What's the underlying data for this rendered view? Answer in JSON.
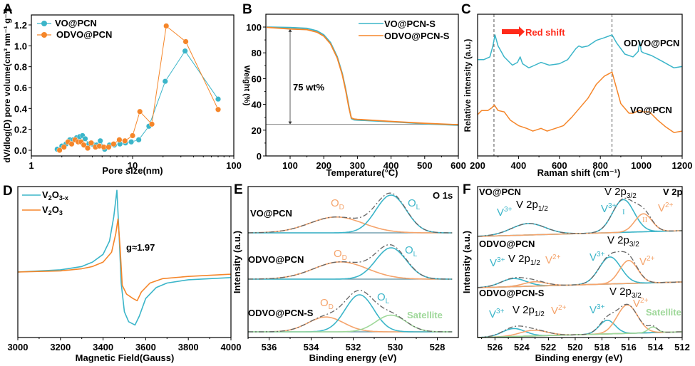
{
  "colors": {
    "teal": "#3bb5c9",
    "orange": "#f5862a",
    "light_orange": "#f5a46c",
    "green": "#9fd89a",
    "gray": "#666666",
    "red": "#ff2a1a"
  },
  "chart_data": [
    {
      "panel": "A",
      "type": "scatter",
      "xscale": "log",
      "xlabel": "Pore size(nm)",
      "ylabel": "dV/dlog(D) pore volume(cm³ nm⁻¹ g⁻¹)",
      "xlim": [
        1,
        100
      ],
      "ylim": [
        -0.05,
        1.25
      ],
      "xticks": [
        "1",
        "10",
        "100"
      ],
      "yticks": [
        "0.0",
        "0.2",
        "0.4",
        "0.6",
        "0.8",
        "1.0",
        "1.2"
      ],
      "legend": "top-left",
      "series": [
        {
          "name": "VO@PCN",
          "color": "teal",
          "x": [
            1.8,
            2.0,
            2.2,
            2.4,
            2.6,
            2.8,
            3.0,
            3.2,
            3.4,
            3.7,
            4.0,
            4.4,
            4.8,
            5.3,
            5.9,
            6.6,
            7.5,
            8.5,
            9.7,
            11.5,
            14.5,
            21,
            33,
            70
          ],
          "y": [
            0.01,
            0.04,
            0.06,
            0.1,
            0.1,
            0.12,
            0.13,
            0.14,
            0.11,
            0.06,
            0.06,
            0.05,
            0.09,
            0.01,
            0.05,
            0.05,
            0.06,
            0.07,
            0.08,
            0.1,
            0.23,
            0.66,
            0.95,
            0.49
          ]
        },
        {
          "name": "ODVO@PCN",
          "color": "orange",
          "x": [
            1.9,
            2.1,
            2.3,
            2.5,
            2.7,
            2.9,
            3.1,
            3.3,
            3.6,
            3.9,
            4.3,
            4.7,
            5.2,
            5.8,
            6.5,
            7.4,
            8.4,
            10.0,
            11.8,
            15.5,
            21.5,
            33.5,
            70
          ],
          "y": [
            0.0,
            0.03,
            0.08,
            0.06,
            0.1,
            0.08,
            0.08,
            0.05,
            0.02,
            0.07,
            0.03,
            0.04,
            0.03,
            0.03,
            0.06,
            0.1,
            0.09,
            0.14,
            0.37,
            0.25,
            1.19,
            1.04,
            0.39
          ]
        }
      ]
    },
    {
      "panel": "B",
      "type": "line",
      "xlabel": "Temperature(°C)",
      "ylabel": "Weight (%)",
      "xlim": [
        30,
        600
      ],
      "ylim": [
        0,
        110
      ],
      "xticks": [
        "100",
        "200",
        "300",
        "400",
        "500",
        "600"
      ],
      "yticks": [
        "0",
        "20",
        "40",
        "60",
        "80",
        "100"
      ],
      "legend": "top-right",
      "annotation": "75 wt%",
      "series": [
        {
          "name": "VO@PCN-S",
          "color": "teal",
          "x": [
            30,
            100,
            150,
            180,
            200,
            220,
            240,
            255,
            265,
            275,
            282,
            290,
            300,
            400,
            500,
            600
          ],
          "y": [
            100,
            99.6,
            99,
            97,
            94,
            88,
            77,
            64,
            52,
            38,
            29,
            28,
            27.8,
            26.5,
            25,
            23.8
          ]
        },
        {
          "name": "ODVO@PCN-S",
          "color": "orange",
          "x": [
            30,
            100,
            150,
            180,
            200,
            220,
            240,
            255,
            265,
            275,
            282,
            290,
            300,
            400,
            500,
            600
          ],
          "y": [
            99.8,
            98.5,
            98,
            96,
            93,
            87,
            76,
            63,
            51,
            37,
            29.5,
            28.6,
            28.4,
            26.8,
            25.3,
            24.2
          ]
        }
      ]
    },
    {
      "panel": "C",
      "type": "line",
      "xlabel": "Raman shift (cm⁻¹)",
      "ylabel": "Relative intensity (a.u.)",
      "xlim": [
        200,
        1200
      ],
      "ylim": [
        0,
        1
      ],
      "xticks": [
        "200",
        "400",
        "600",
        "800",
        "1000",
        "1200"
      ],
      "reference_lines_x": [
        280,
        857
      ],
      "annotation": "Red shift",
      "series": [
        {
          "name": "ODVO@PCN",
          "color": "teal",
          "x": [
            200,
            230,
            260,
            275,
            285,
            300,
            330,
            370,
            395,
            408,
            420,
            450,
            480,
            510,
            550,
            600,
            640,
            680,
            695,
            710,
            740,
            780,
            820,
            857,
            880,
            920,
            960,
            985,
            993,
            1000,
            1010,
            1050,
            1100,
            1160,
            1200
          ],
          "y": [
            0.68,
            0.68,
            0.7,
            0.78,
            0.86,
            0.78,
            0.7,
            0.64,
            0.66,
            0.7,
            0.65,
            0.62,
            0.64,
            0.66,
            0.64,
            0.65,
            0.68,
            0.76,
            0.78,
            0.77,
            0.78,
            0.82,
            0.84,
            0.86,
            0.8,
            0.72,
            0.7,
            0.74,
            0.81,
            0.74,
            0.73,
            0.71,
            0.67,
            0.62,
            0.63
          ]
        },
        {
          "name": "VO@PCN",
          "color": "orange",
          "x": [
            200,
            220,
            250,
            270,
            282,
            300,
            330,
            360,
            400,
            440,
            470,
            510,
            540,
            580,
            620,
            660,
            700,
            740,
            780,
            820,
            845,
            857,
            870,
            900,
            940,
            960,
            990,
            1010,
            1040,
            1080,
            1120,
            1160,
            1200
          ],
          "y": [
            0.28,
            0.31,
            0.31,
            0.33,
            0.35,
            0.31,
            0.3,
            0.24,
            0.2,
            0.18,
            0.16,
            0.18,
            0.16,
            0.18,
            0.2,
            0.26,
            0.33,
            0.4,
            0.5,
            0.56,
            0.58,
            0.59,
            0.52,
            0.36,
            0.29,
            0.29,
            0.31,
            0.3,
            0.3,
            0.24,
            0.19,
            0.15,
            0.16
          ]
        }
      ]
    },
    {
      "panel": "D",
      "type": "line",
      "xlabel": "Magnetic Field(Gauss)",
      "ylabel": "",
      "xlim": [
        3000,
        4000
      ],
      "ylim": [
        -1,
        1
      ],
      "xticks": [
        "3000",
        "3200",
        "3400",
        "3600",
        "3800",
        "4000"
      ],
      "annotation": "g≈1.97",
      "legend": "top-left",
      "series": [
        {
          "name": "V2O3-x",
          "color": "teal",
          "x": [
            3000,
            3200,
            3300,
            3350,
            3400,
            3430,
            3450,
            3465,
            3475,
            3485,
            3500,
            3520,
            3550,
            3570,
            3600,
            3650,
            3700,
            3800,
            4000
          ],
          "y": [
            0.0,
            0.02,
            0.05,
            0.09,
            0.16,
            0.28,
            0.5,
            0.74,
            0.35,
            -0.1,
            -0.36,
            -0.45,
            -0.48,
            -0.4,
            -0.24,
            -0.14,
            -0.1,
            -0.07,
            -0.05
          ]
        },
        {
          "name": "V2O3",
          "color": "orange",
          "x": [
            3000,
            3200,
            3300,
            3350,
            3400,
            3440,
            3460,
            3470,
            3480,
            3490,
            3510,
            3540,
            3560,
            3580,
            3620,
            3680,
            3800,
            4000
          ],
          "y": [
            0.0,
            0.01,
            0.03,
            0.05,
            0.09,
            0.18,
            0.35,
            0.48,
            0.22,
            -0.12,
            -0.2,
            -0.24,
            -0.26,
            -0.18,
            -0.1,
            -0.06,
            -0.04,
            -0.02
          ]
        }
      ]
    },
    {
      "panel": "E",
      "type": "line",
      "title_tag": "O 1s",
      "xlabel": "Binding energy (eV)",
      "ylabel": "Intensity (a.u.)",
      "xlim": [
        537,
        527
      ],
      "xticks": [
        "536",
        "534",
        "532",
        "530",
        "528"
      ],
      "spectra": [
        {
          "sample": "VO@PCN",
          "peaks": [
            {
              "label": "OD",
              "color": "light_orange",
              "center": 532.8,
              "fwhm": 3.0,
              "height": 0.42
            },
            {
              "label": "OL",
              "color": "teal",
              "center": 530.2,
              "fwhm": 1.7,
              "height": 1.0
            }
          ]
        },
        {
          "sample": "ODVO@PCN",
          "peaks": [
            {
              "label": "OD",
              "color": "light_orange",
              "center": 532.6,
              "fwhm": 3.0,
              "height": 0.55
            },
            {
              "label": "OL",
              "color": "teal",
              "center": 530.2,
              "fwhm": 1.7,
              "height": 1.0
            }
          ]
        },
        {
          "sample": "ODVO@PCN-S",
          "peaks": [
            {
              "label": "OD",
              "color": "light_orange",
              "center": 533.3,
              "fwhm": 2.0,
              "height": 0.4
            },
            {
              "label": "OL",
              "color": "teal",
              "center": 531.7,
              "fwhm": 1.6,
              "height": 1.0
            },
            {
              "label": "Satellite",
              "color": "green",
              "center": 530.2,
              "fwhm": 1.7,
              "height": 0.45
            }
          ]
        }
      ]
    },
    {
      "panel": "F",
      "type": "line",
      "title_tag": "V 2p",
      "xlabel": "Binding energy (eV)",
      "ylabel": "Intensity (a.u.)",
      "xlim": [
        527.3,
        512
      ],
      "xticks": [
        "526",
        "524",
        "522",
        "520",
        "518",
        "516",
        "514",
        "512"
      ],
      "spectra": [
        {
          "sample": "VO@PCN",
          "peaks": [
            {
              "label": "V3+",
              "color": "teal",
              "center": 523.5,
              "fwhm": 3.0,
              "height": 0.35
            },
            {
              "label": "V3+",
              "color": "teal",
              "center": 516.4,
              "fwhm": 1.9,
              "height": 1.0
            },
            {
              "label": "V2+",
              "color": "light_orange",
              "center": 514.9,
              "fwhm": 1.5,
              "height": 0.55
            }
          ]
        },
        {
          "sample": "ODVO@PCN",
          "peaks": [
            {
              "label": "V3+",
              "color": "teal",
              "center": 524.6,
              "fwhm": 2.2,
              "height": 0.3
            },
            {
              "label": "V2+",
              "color": "light_orange",
              "center": 523.0,
              "fwhm": 2.0,
              "height": 0.16
            },
            {
              "label": "V3+",
              "color": "teal",
              "center": 517.4,
              "fwhm": 1.9,
              "height": 1.0
            },
            {
              "label": "V2+",
              "color": "light_orange",
              "center": 516.0,
              "fwhm": 1.6,
              "height": 0.85
            }
          ]
        },
        {
          "sample": "ODVO@PCN-S",
          "peaks": [
            {
              "label": "V3+",
              "color": "teal",
              "center": 524.6,
              "fwhm": 2.0,
              "height": 0.28
            },
            {
              "label": "V2+",
              "color": "light_orange",
              "center": 523.1,
              "fwhm": 2.4,
              "height": 0.2
            },
            {
              "label": "V3+",
              "color": "teal",
              "center": 517.6,
              "fwhm": 1.4,
              "height": 0.48
            },
            {
              "label": "V2+",
              "color": "light_orange",
              "center": 516.1,
              "fwhm": 1.8,
              "height": 1.0
            },
            {
              "label": "Satellite",
              "color": "green",
              "center": 514.2,
              "fwhm": 0.8,
              "height": 0.2
            }
          ]
        }
      ]
    }
  ],
  "labels": {
    "A": {
      "panel": "A",
      "xlabel": "Pore size(nm)",
      "ylabel": "dV/dlog(D) pore volume(cm³ nm⁻¹ g⁻¹)",
      "legend": [
        "VO@PCN",
        "ODVO@PCN"
      ],
      "xticks": [
        "1",
        "10",
        "100"
      ],
      "yticks": [
        "0.0",
        "0.2",
        "0.4",
        "0.6",
        "0.8",
        "1.0",
        "1.2"
      ]
    },
    "B": {
      "panel": "B",
      "xlabel": "Temperature(°C)",
      "ylabel": "Weight (%)",
      "legend": [
        "VO@PCN-S",
        "ODVO@PCN-S"
      ],
      "annotation": "75 wt%",
      "xticks": [
        "100",
        "200",
        "300",
        "400",
        "500",
        "600"
      ],
      "yticks": [
        "0",
        "20",
        "40",
        "60",
        "80",
        "100"
      ]
    },
    "C": {
      "panel": "C",
      "xlabel": "Raman shift (cm⁻¹)",
      "ylabel": "Relative intensity (a.u.)",
      "annotation": "Red shift",
      "series_top": "ODVO@PCN",
      "series_bottom": "VO@PCN",
      "xticks": [
        "200",
        "400",
        "600",
        "800",
        "1000",
        "1200"
      ]
    },
    "D": {
      "panel": "D",
      "xlabel": "Magnetic Field(Gauss)",
      "legend_1": "V2O3-x",
      "legend_2": "V2O3",
      "annotation": "g≈1.97",
      "xticks": [
        "3000",
        "3200",
        "3400",
        "3600",
        "3800",
        "4000"
      ]
    },
    "E": {
      "panel": "E",
      "xlabel": "Binding energy (eV)",
      "ylabel": "Intensity (a.u.)",
      "tag": "O 1s",
      "samples": [
        "VO@PCN",
        "ODVO@PCN",
        "ODVO@PCN-S"
      ],
      "OD": "O",
      "OD_sub": "D",
      "OL": "O",
      "OL_sub": "L",
      "satellite": "Satellite",
      "xticks": [
        "536",
        "534",
        "532",
        "530",
        "528"
      ]
    },
    "F": {
      "panel": "F",
      "xlabel": "Binding energy (eV)",
      "ylabel": "Intensity (a.u.)",
      "tag": "V 2p",
      "samples": [
        "VO@PCN",
        "ODVO@PCN",
        "ODVO@PCN-S"
      ],
      "p12": "V 2p",
      "p12_sub": "1/2",
      "p32": "V 2p",
      "p32_sub": "3/2",
      "v3": "V",
      "v3_sup": "3+",
      "v2": "V",
      "v2_sup": "2+",
      "roman_1": "I",
      "roman_2": "II",
      "satellite": "Satellite",
      "xticks": [
        "526",
        "524",
        "522",
        "520",
        "518",
        "516",
        "514",
        "512"
      ]
    }
  }
}
